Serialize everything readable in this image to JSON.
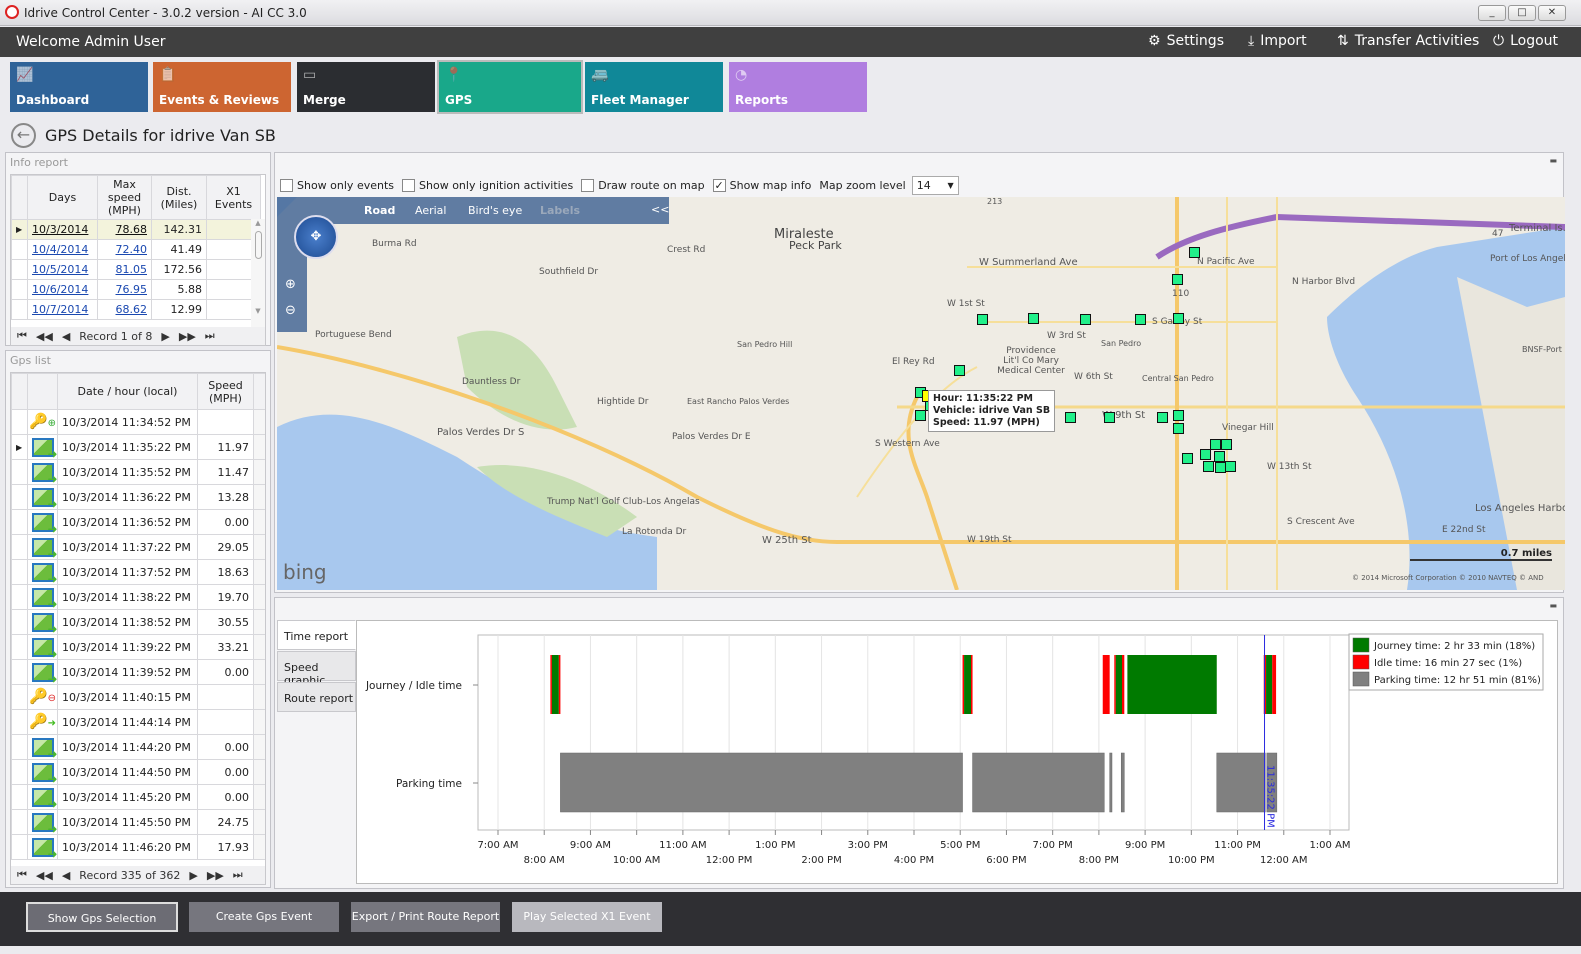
{
  "window": {
    "title": "Idrive Control Center - 3.0.2 version - AI CC 3.0",
    "minimize": "_",
    "maximize": "□",
    "close": "✕"
  },
  "header": {
    "welcome": "Welcome Admin User",
    "settings": "Settings",
    "import": "Import",
    "transfer": "Transfer Activities",
    "logout": "Logout"
  },
  "tiles": [
    {
      "label": "Dashboard",
      "color": "#2f6398",
      "icon": "chart-icon"
    },
    {
      "label": "Events & Reviews",
      "color": "#cd6531",
      "icon": "clipboard-icon"
    },
    {
      "label": "Merge",
      "color": "#2b2d31",
      "icon": "merge-icon"
    },
    {
      "label": "GPS",
      "color": "#19a88a",
      "icon": "pin-icon",
      "selected": true
    },
    {
      "label": "Fleet Manager",
      "color": "#108898",
      "icon": "vehicles-icon"
    },
    {
      "label": "Reports",
      "color": "#b07ee0",
      "icon": "pie-icon"
    }
  ],
  "page_title": "GPS Details for idrive Van SB",
  "info_report": {
    "title": "Info report",
    "columns": [
      "Days",
      "Max speed (MPH)",
      "Dist. (Miles)",
      "X1 Events"
    ],
    "rows": [
      [
        "10/3/2014",
        "78.68",
        "142.31",
        ""
      ],
      [
        "10/4/2014",
        "72.40",
        "41.49",
        ""
      ],
      [
        "10/5/2014",
        "81.05",
        "172.56",
        ""
      ],
      [
        "10/6/2014",
        "76.95",
        "5.88",
        ""
      ],
      [
        "10/7/2014",
        "68.62",
        "12.99",
        ""
      ]
    ],
    "record": "Record 1 of 8"
  },
  "gps_list": {
    "title": "Gps list",
    "columns": [
      "Date / hour (local)",
      "Speed (MPH)"
    ],
    "rows": [
      {
        "icon": "key-add",
        "time": "10/3/2014 11:34:52 PM",
        "speed": ""
      },
      {
        "icon": "map",
        "time": "10/3/2014 11:35:22 PM",
        "speed": "11.97",
        "selected": true
      },
      {
        "icon": "map",
        "time": "10/3/2014 11:35:52 PM",
        "speed": "11.47"
      },
      {
        "icon": "map",
        "time": "10/3/2014 11:36:22 PM",
        "speed": "13.28"
      },
      {
        "icon": "map",
        "time": "10/3/2014 11:36:52 PM",
        "speed": "0.00"
      },
      {
        "icon": "map",
        "time": "10/3/2014 11:37:22 PM",
        "speed": "29.05"
      },
      {
        "icon": "map",
        "time": "10/3/2014 11:37:52 PM",
        "speed": "18.63"
      },
      {
        "icon": "map",
        "time": "10/3/2014 11:38:22 PM",
        "speed": "19.70"
      },
      {
        "icon": "map",
        "time": "10/3/2014 11:38:52 PM",
        "speed": "30.55"
      },
      {
        "icon": "map",
        "time": "10/3/2014 11:39:22 PM",
        "speed": "33.21"
      },
      {
        "icon": "map",
        "time": "10/3/2014 11:39:52 PM",
        "speed": "0.00"
      },
      {
        "icon": "key-remove",
        "time": "10/3/2014 11:40:15 PM",
        "speed": ""
      },
      {
        "icon": "key-go",
        "time": "10/3/2014 11:44:14 PM",
        "speed": ""
      },
      {
        "icon": "map",
        "time": "10/3/2014 11:44:20 PM",
        "speed": "0.00"
      },
      {
        "icon": "map",
        "time": "10/3/2014 11:44:50 PM",
        "speed": "0.00"
      },
      {
        "icon": "map",
        "time": "10/3/2014 11:45:20 PM",
        "speed": "0.00"
      },
      {
        "icon": "map",
        "time": "10/3/2014 11:45:50 PM",
        "speed": "24.75"
      },
      {
        "icon": "map",
        "time": "10/3/2014 11:46:20 PM",
        "speed": "17.93"
      }
    ],
    "record": "Record 335 of 362"
  },
  "map_options": {
    "show_only_events": "Show only events",
    "show_only_events_checked": false,
    "show_only_ignition": "Show only ignition activities",
    "show_only_ignition_checked": false,
    "draw_route": "Draw route on map",
    "draw_route_checked": false,
    "show_map_info": "Show map info",
    "show_map_info_checked": true,
    "zoom_label": "Map zoom level",
    "zoom_value": "14"
  },
  "map": {
    "modes": [
      "Road",
      "Aerial",
      "Bird's eye",
      "Labels"
    ],
    "collapse": "<<",
    "brand": "bing",
    "scale": "0.7 miles",
    "copyright": "© 2014 Microsoft Corporation   © 2010 NAVTEQ   © AND",
    "labels": [
      "Miraleste",
      "Peck Park",
      "W Summerland Ave",
      "Crest Rd",
      "Burma Rd",
      "Southfield Dr",
      "Portuguese Bend",
      "Palos Verdes Dr S",
      "San Pedro Hill",
      "East Rancho Palos Verdes",
      "W 1st St",
      "San Pedro",
      "Central San Pedro",
      "W 6th St",
      "W 3rd St",
      "Vinegar Hill",
      "W 9th St",
      "W 13th St",
      "W 19th St",
      "W 25th St",
      "Trump Nat'l Golf Club-Los Angelas",
      "S Western Ave",
      "S Gaffey St",
      "N Pacific Ave",
      "N Harbor Blvd",
      "Terminal Is.",
      "Port of Los Angel",
      "Los Angeles Harbor",
      "S Crescent Ave",
      "BNSF-Port",
      "E 22nd St",
      "El Rey Rd",
      "Dauntless Dr",
      "Hightide Dr",
      "Providence Lit'l Co Mary Medical Center",
      "Palos Verdes Dr E",
      "La Rotonda Dr",
      "110",
      "47",
      "213"
    ],
    "tooltip": {
      "hour": "Hour: 11:35:22 PM",
      "vehicle": "Vehicle: idrive Van SB",
      "speed": "Speed: 11.97 (MPH)"
    }
  },
  "tabs": [
    "Time report",
    "Speed graphic",
    "Route report"
  ],
  "chart_data": {
    "type": "timeline",
    "categories": [
      "Journey / Idle time",
      "Parking time"
    ],
    "x_ticks": [
      "7:00 AM",
      "8:00 AM",
      "9:00 AM",
      "10:00 AM",
      "11:00 AM",
      "12:00 PM",
      "1:00 PM",
      "2:00 PM",
      "3:00 PM",
      "4:00 PM",
      "5:00 PM",
      "6:00 PM",
      "7:00 PM",
      "8:00 PM",
      "9:00 PM",
      "10:00 PM",
      "11:00 PM",
      "12:00 AM",
      "1:00 AM"
    ],
    "x_range": [
      "07:00",
      "25:00"
    ],
    "grid": true,
    "legend": [
      {
        "name": "Journey time: 2 hr 33 min (18%)",
        "color": "#007a00"
      },
      {
        "name": "Idle time: 16 min 27 sec (1%)",
        "color": "#ff0000"
      },
      {
        "name": "Parking time: 12 hr 51 min (81%)",
        "color": "#808080"
      }
    ],
    "legend_position": "right",
    "segments": [
      {
        "row": 0,
        "type": "idle",
        "start": "08:08",
        "end": "08:10"
      },
      {
        "row": 0,
        "type": "journey",
        "start": "08:10",
        "end": "08:19"
      },
      {
        "row": 0,
        "type": "idle",
        "start": "08:19",
        "end": "08:21"
      },
      {
        "row": 0,
        "type": "idle",
        "start": "17:03",
        "end": "17:05"
      },
      {
        "row": 0,
        "type": "journey",
        "start": "17:05",
        "end": "17:14"
      },
      {
        "row": 0,
        "type": "idle",
        "start": "17:14",
        "end": "17:16"
      },
      {
        "row": 0,
        "type": "idle",
        "start": "20:05",
        "end": "20:14"
      },
      {
        "row": 0,
        "type": "idle",
        "start": "20:20",
        "end": "20:22"
      },
      {
        "row": 0,
        "type": "journey",
        "start": "20:22",
        "end": "20:30"
      },
      {
        "row": 0,
        "type": "idle",
        "start": "20:30",
        "end": "20:33"
      },
      {
        "row": 0,
        "type": "journey",
        "start": "20:37",
        "end": "22:33"
      },
      {
        "row": 0,
        "type": "idle",
        "start": "23:34",
        "end": "23:37"
      },
      {
        "row": 0,
        "type": "journey",
        "start": "23:37",
        "end": "23:45"
      },
      {
        "row": 0,
        "type": "idle",
        "start": "23:45",
        "end": "23:50"
      },
      {
        "row": 1,
        "type": "parking",
        "start": "08:21",
        "end": "17:03"
      },
      {
        "row": 1,
        "type": "parking",
        "start": "17:16",
        "end": "20:07"
      },
      {
        "row": 1,
        "type": "parking",
        "start": "20:14",
        "end": "20:17"
      },
      {
        "row": 1,
        "type": "parking",
        "start": "20:29",
        "end": "20:33"
      },
      {
        "row": 1,
        "type": "parking",
        "start": "22:33",
        "end": "23:36"
      },
      {
        "row": 1,
        "type": "parking",
        "start": "23:38",
        "end": "23:51"
      }
    ],
    "cursor": {
      "time": "23:35",
      "label": "11:35:22 PM"
    }
  },
  "bottom_buttons": [
    "Show Gps Selection",
    "Create Gps Event",
    "Export / Print Route Report",
    "Play Selected X1 Event"
  ]
}
